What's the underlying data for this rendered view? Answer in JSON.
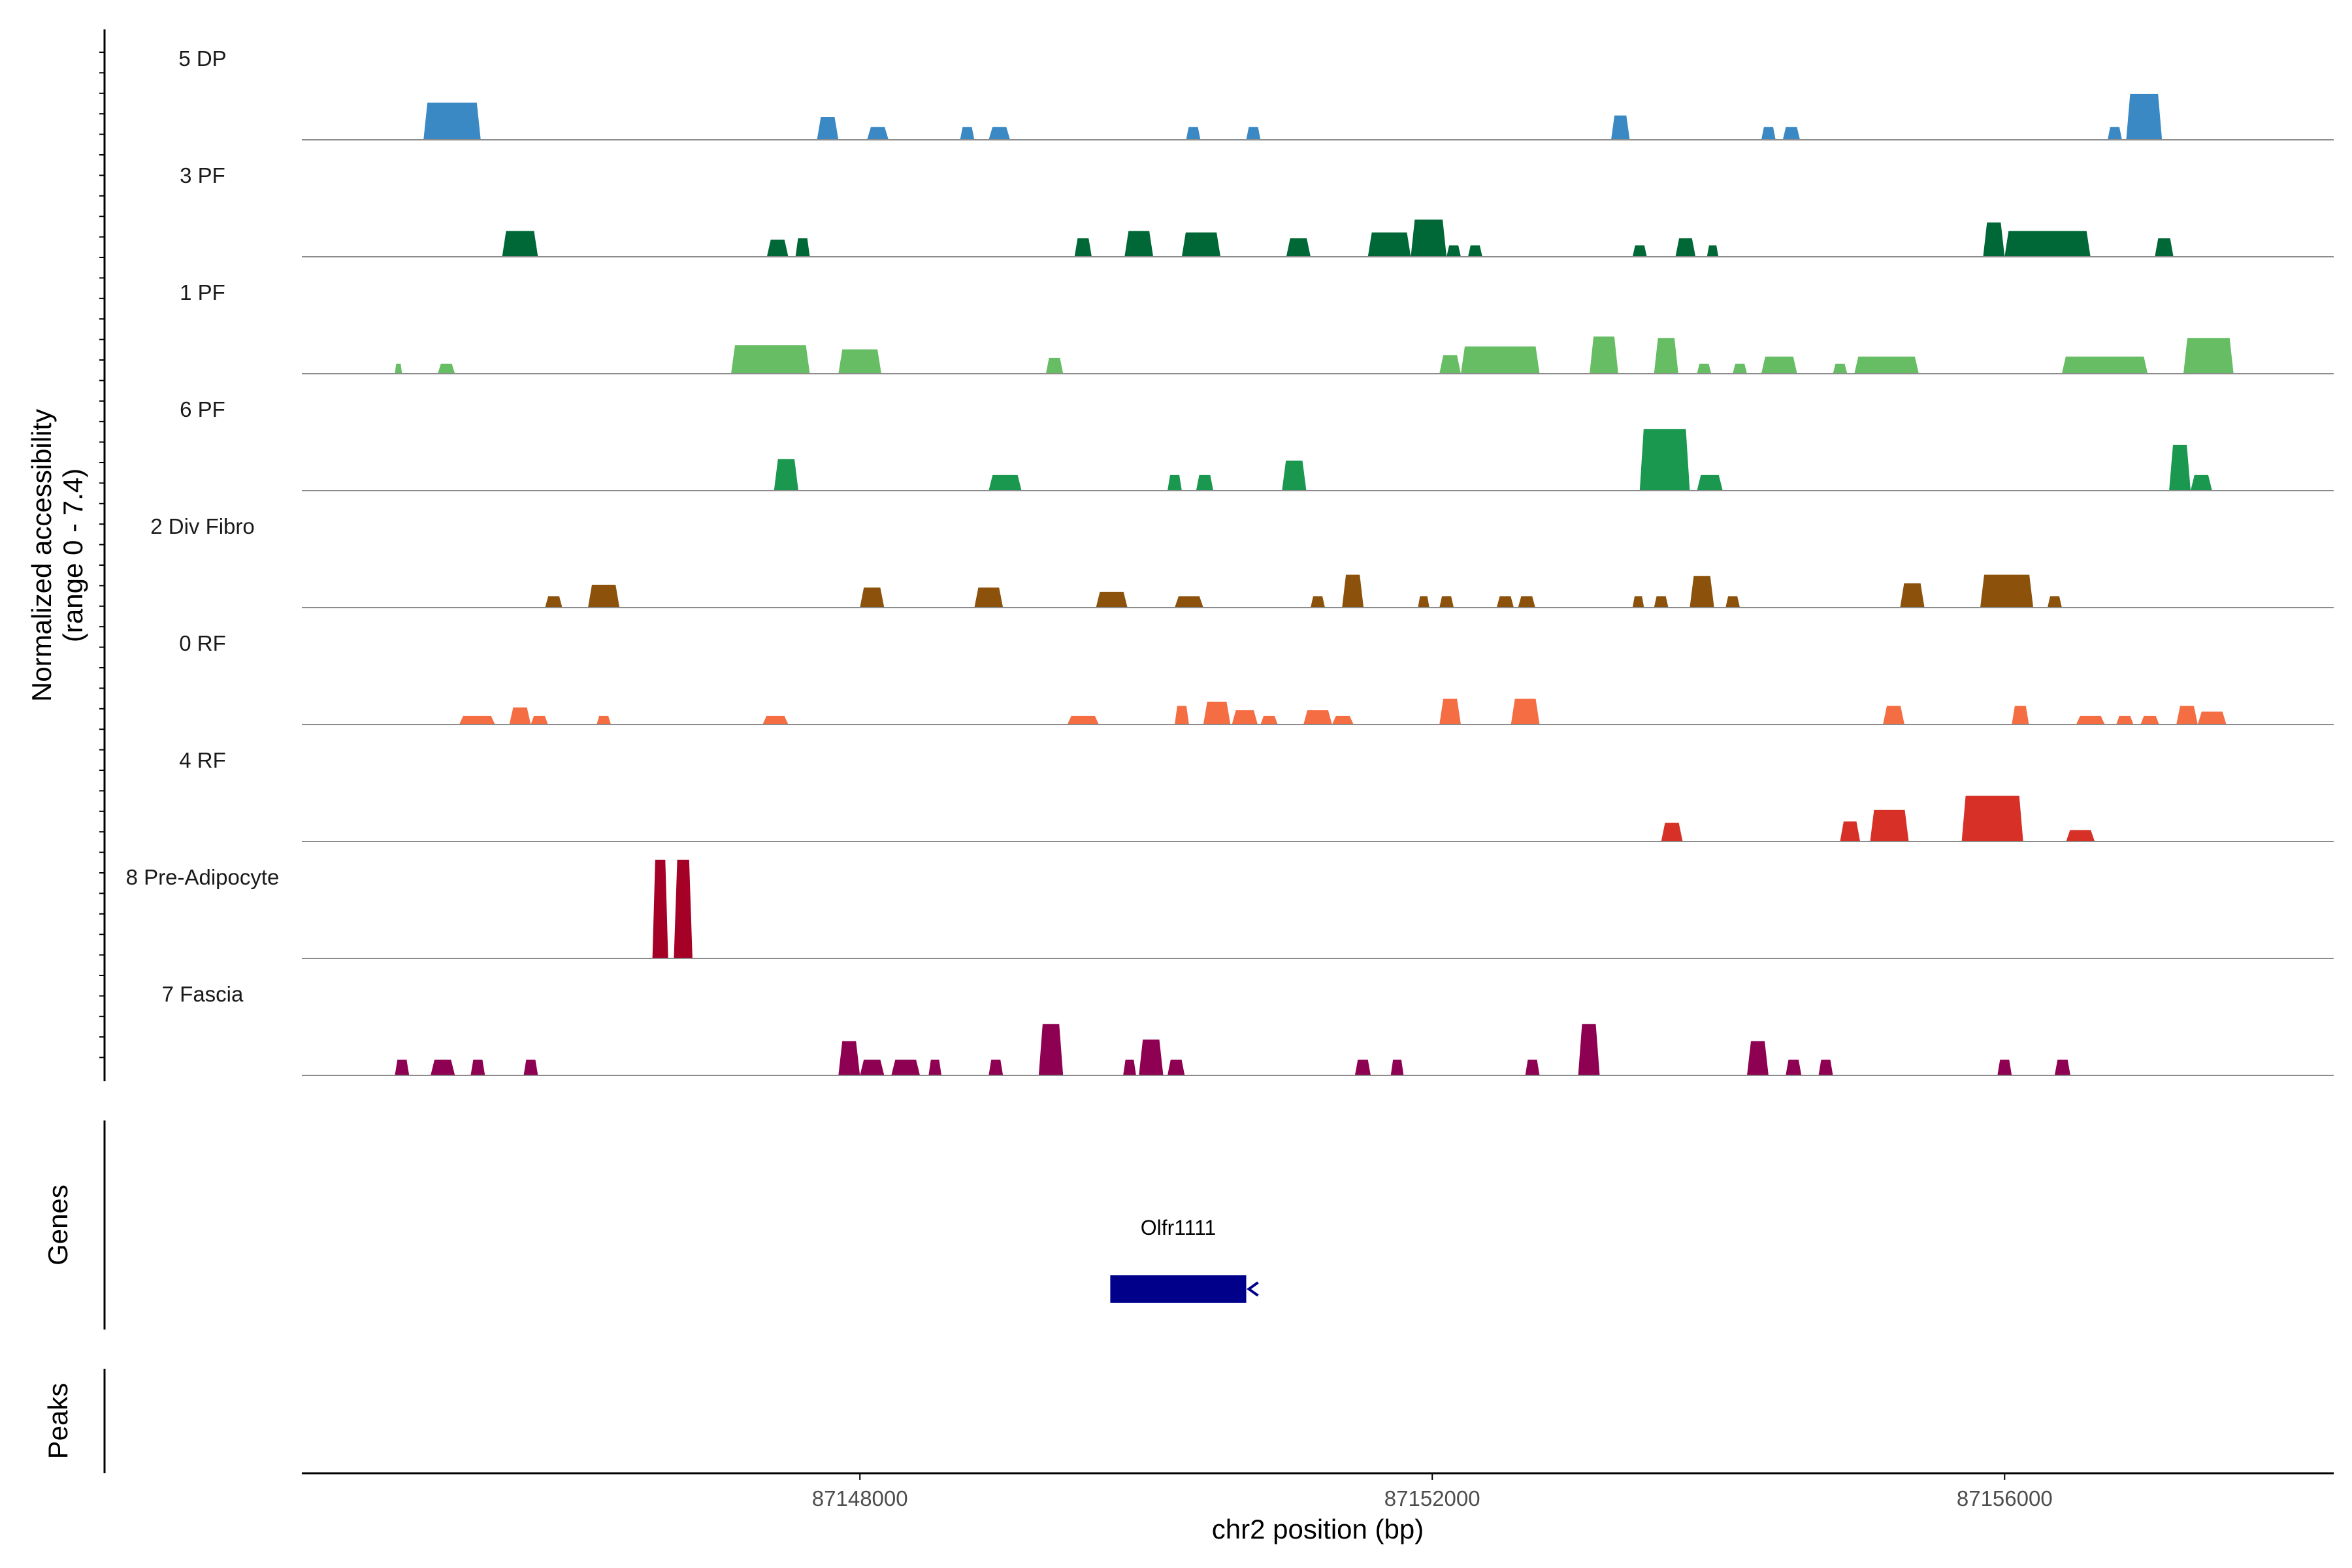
{
  "chart_data": {
    "type": "area",
    "title": "",
    "ylabel_line1": "Normalized accessibility",
    "ylabel_line2": "(range 0 - 7.4)",
    "ylim": [
      0,
      7.4
    ],
    "xlabel": "chr2 position (bp)",
    "xlim": [
      87144100,
      87158300
    ],
    "xticks": [
      87148000,
      87152000,
      87156000
    ],
    "xtick_labels": [
      "87148000",
      "87152000",
      "87156000"
    ],
    "genes_panel_label": "Genes",
    "peaks_panel_label": "Peaks",
    "genes": [
      {
        "name": "Olfr1111",
        "start": 87149750,
        "end": 87150700,
        "strand": "-",
        "color": "#00008b"
      }
    ],
    "tracks": [
      {
        "name": "5 DP",
        "color": "#3a89c4",
        "peaks": [
          [
            87144950,
            87145350,
            2.6
          ],
          [
            87147700,
            87147850,
            1.6
          ],
          [
            87148050,
            87148200,
            0.9
          ],
          [
            87148700,
            87148800,
            0.9
          ],
          [
            87148900,
            87149050,
            0.9
          ],
          [
            87150280,
            87150380,
            0.9
          ],
          [
            87150700,
            87150800,
            0.9
          ],
          [
            87153250,
            87153380,
            1.7
          ],
          [
            87154300,
            87154400,
            0.9
          ],
          [
            87154450,
            87154570,
            0.9
          ],
          [
            87156720,
            87156820,
            0.9
          ],
          [
            87156850,
            87157100,
            3.2
          ]
        ]
      },
      {
        "name": "3 PF",
        "color": "#006837",
        "peaks": [
          [
            87145500,
            87145750,
            1.8
          ],
          [
            87147350,
            87147500,
            1.2
          ],
          [
            87147550,
            87147650,
            1.3
          ],
          [
            87149500,
            87149620,
            1.3
          ],
          [
            87149850,
            87150050,
            1.8
          ],
          [
            87150250,
            87150520,
            1.7
          ],
          [
            87150980,
            87151150,
            1.3
          ],
          [
            87151550,
            87151850,
            1.7
          ],
          [
            87151850,
            87152100,
            2.6
          ],
          [
            87152100,
            87152200,
            0.8
          ],
          [
            87152250,
            87152350,
            0.8
          ],
          [
            87153400,
            87153500,
            0.8
          ],
          [
            87153700,
            87153840,
            1.3
          ],
          [
            87153920,
            87154000,
            0.8
          ],
          [
            87155850,
            87156000,
            2.4
          ],
          [
            87156000,
            87156600,
            1.8
          ],
          [
            87157050,
            87157180,
            1.3
          ]
        ]
      },
      {
        "name": "1 PF",
        "color": "#66bd63",
        "peaks": [
          [
            87144750,
            87144800,
            0.7
          ],
          [
            87145050,
            87145170,
            0.7
          ],
          [
            87147100,
            87147650,
            2.0
          ],
          [
            87147850,
            87148150,
            1.7
          ],
          [
            87149300,
            87149420,
            1.1
          ],
          [
            87152050,
            87152200,
            1.3
          ],
          [
            87152200,
            87152750,
            1.9
          ],
          [
            87153100,
            87153300,
            2.6
          ],
          [
            87153550,
            87153720,
            2.5
          ],
          [
            87153850,
            87153950,
            0.7
          ],
          [
            87154100,
            87154200,
            0.7
          ],
          [
            87154300,
            87154550,
            1.2
          ],
          [
            87154800,
            87154900,
            0.7
          ],
          [
            87154950,
            87155400,
            1.2
          ],
          [
            87156400,
            87157000,
            1.2
          ],
          [
            87157250,
            87157600,
            2.5
          ]
        ]
      },
      {
        "name": "6 PF",
        "color": "#1a9850",
        "peaks": [
          [
            87147400,
            87147570,
            2.2
          ],
          [
            87148900,
            87149130,
            1.1
          ],
          [
            87150150,
            87150250,
            1.1
          ],
          [
            87150350,
            87150470,
            1.1
          ],
          [
            87150950,
            87151120,
            2.1
          ],
          [
            87153450,
            87153800,
            4.3
          ],
          [
            87153850,
            87154030,
            1.1
          ],
          [
            87157150,
            87157300,
            3.2
          ],
          [
            87157300,
            87157450,
            1.1
          ]
        ]
      },
      {
        "name": "2 Div Fibro",
        "color": "#8c510a",
        "peaks": [
          [
            87145800,
            87145920,
            0.8
          ],
          [
            87146100,
            87146320,
            1.6
          ],
          [
            87148000,
            87148170,
            1.4
          ],
          [
            87148800,
            87149000,
            1.4
          ],
          [
            87149650,
            87149870,
            1.1
          ],
          [
            87150200,
            87150400,
            0.8
          ],
          [
            87151150,
            87151250,
            0.8
          ],
          [
            87151370,
            87151520,
            2.3
          ],
          [
            87151900,
            87151980,
            0.8
          ],
          [
            87152050,
            87152150,
            0.8
          ],
          [
            87152450,
            87152570,
            0.8
          ],
          [
            87152600,
            87152720,
            0.8
          ],
          [
            87153400,
            87153480,
            0.8
          ],
          [
            87153550,
            87153650,
            0.8
          ],
          [
            87153800,
            87153970,
            2.2
          ],
          [
            87154050,
            87154150,
            0.8
          ],
          [
            87155270,
            87155440,
            1.7
          ],
          [
            87155830,
            87156200,
            2.3
          ],
          [
            87156300,
            87156400,
            0.8
          ]
        ]
      },
      {
        "name": "0 RF",
        "color": "#f46d43",
        "peaks": [
          [
            87145200,
            87145450,
            0.6
          ],
          [
            87145550,
            87145700,
            1.2
          ],
          [
            87145700,
            87145820,
            0.6
          ],
          [
            87146160,
            87146260,
            0.6
          ],
          [
            87147320,
            87147500,
            0.6
          ],
          [
            87149450,
            87149670,
            0.6
          ],
          [
            87150200,
            87150300,
            1.3
          ],
          [
            87150400,
            87150590,
            1.6
          ],
          [
            87150600,
            87150780,
            1.0
          ],
          [
            87150800,
            87150920,
            0.6
          ],
          [
            87151100,
            87151300,
            1.0
          ],
          [
            87151300,
            87151450,
            0.6
          ],
          [
            87152050,
            87152200,
            1.8
          ],
          [
            87152550,
            87152750,
            1.8
          ],
          [
            87155150,
            87155300,
            1.3
          ],
          [
            87156050,
            87156170,
            1.3
          ],
          [
            87156500,
            87156700,
            0.6
          ],
          [
            87156780,
            87156900,
            0.6
          ],
          [
            87156950,
            87157080,
            0.6
          ],
          [
            87157200,
            87157350,
            1.3
          ],
          [
            87157350,
            87157550,
            0.9
          ]
        ]
      },
      {
        "name": "4 RF",
        "color": "#d73027",
        "peaks": [
          [
            87153600,
            87153750,
            1.3
          ],
          [
            87154850,
            87154990,
            1.4
          ],
          [
            87155060,
            87155330,
            2.2
          ],
          [
            87155700,
            87156130,
            3.2
          ],
          [
            87156430,
            87156630,
            0.8
          ]
        ]
      },
      {
        "name": "8 Pre-Adipocyte",
        "color": "#a50026",
        "peaks": [
          [
            87146550,
            87146660,
            6.9
          ],
          [
            87146700,
            87146830,
            6.9
          ]
        ]
      },
      {
        "name": "7 Fascia",
        "color": "#8e0152",
        "peaks": [
          [
            87144750,
            87144850,
            1.1
          ],
          [
            87145000,
            87145170,
            1.1
          ],
          [
            87145280,
            87145380,
            1.1
          ],
          [
            87145650,
            87145750,
            1.1
          ],
          [
            87147850,
            87148000,
            2.4
          ],
          [
            87148000,
            87148170,
            1.1
          ],
          [
            87148220,
            87148420,
            1.1
          ],
          [
            87148480,
            87148570,
            1.1
          ],
          [
            87148900,
            87149000,
            1.1
          ],
          [
            87149250,
            87149420,
            3.6
          ],
          [
            87149840,
            87149930,
            1.1
          ],
          [
            87149950,
            87150120,
            2.5
          ],
          [
            87150150,
            87150270,
            1.1
          ],
          [
            87151460,
            87151570,
            1.1
          ],
          [
            87151710,
            87151800,
            1.1
          ],
          [
            87152650,
            87152750,
            1.1
          ],
          [
            87153020,
            87153170,
            3.6
          ],
          [
            87154200,
            87154350,
            2.4
          ],
          [
            87154470,
            87154580,
            1.1
          ],
          [
            87154700,
            87154800,
            1.1
          ],
          [
            87155950,
            87156050,
            1.1
          ],
          [
            87156350,
            87156460,
            1.1
          ]
        ]
      }
    ]
  }
}
